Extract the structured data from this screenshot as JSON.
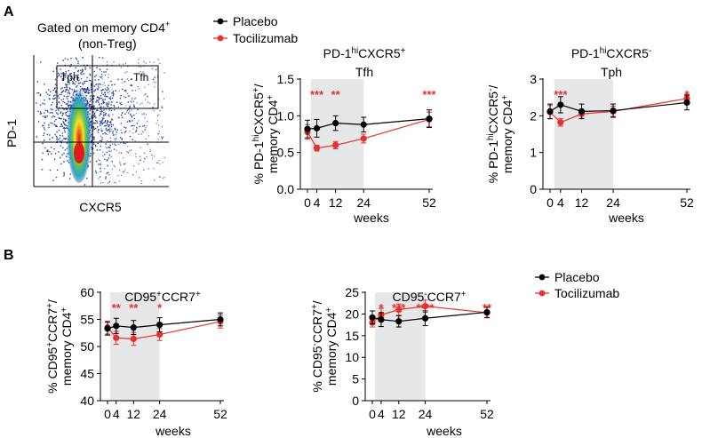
{
  "panel_a_label": "A",
  "panel_b_label": "B",
  "flow": {
    "title_line1": "Gated on memory CD4",
    "title_sup": "+",
    "title_line2": "(non-Treg)",
    "ylabel": "PD-1",
    "xlabel": "CXCR5",
    "gate_left": "Tph",
    "gate_right": "Tfh"
  },
  "legend_a": {
    "placebo": "Placebo",
    "toci": "Tocilizumab"
  },
  "legend_b": {
    "placebo": "Placebo",
    "toci": "Tocilizumab"
  },
  "colors": {
    "placebo": "#000000",
    "toci": "#e8312f",
    "shade": "#e6e7e8",
    "stars": "#e8312f"
  },
  "chart_data": [
    {
      "type": "line",
      "title_line1": "PD-1hiCXCR5+",
      "title_line2": "Tfh",
      "ylabel_line1": "% PD-1hiCXCR5+/",
      "ylabel_line2": "memory CD4+",
      "xlabel": "weeks",
      "x": [
        0,
        4,
        12,
        24,
        52
      ],
      "xticks": [
        "0",
        "4",
        "12",
        "24",
        "52"
      ],
      "yticks": [
        "0.0",
        "0.5",
        "1.0",
        "1.5"
      ],
      "ylim": [
        0,
        1.5
      ],
      "shaded_range": [
        4,
        24
      ],
      "series": [
        {
          "name": "Placebo",
          "values": [
            0.82,
            0.83,
            0.9,
            0.88,
            0.96
          ],
          "err": [
            0.12,
            0.12,
            0.1,
            0.1,
            0.12
          ]
        },
        {
          "name": "Tocilizumab",
          "values": [
            0.78,
            0.56,
            0.6,
            0.69,
            0.95
          ],
          "err": [
            0.1,
            0.04,
            0.05,
            0.06,
            0.1
          ]
        }
      ],
      "significance": [
        {
          "x": 4,
          "label": "***"
        },
        {
          "x": 12,
          "label": "**"
        },
        {
          "x": 52,
          "label": "***"
        }
      ]
    },
    {
      "type": "line",
      "title_line1": "PD-1hiCXCR5-",
      "title_line2": "Tph",
      "ylabel_line1": "% PD-1hiCXCR5-/",
      "ylabel_line2": "memory CD4+",
      "xlabel": "weeks",
      "x": [
        0,
        4,
        12,
        24,
        52
      ],
      "xticks": [
        "0",
        "4",
        "12",
        "24",
        "52"
      ],
      "yticks": [
        "0",
        "1",
        "2",
        "3"
      ],
      "ylim": [
        0,
        3
      ],
      "shaded_range": [
        4,
        24
      ],
      "series": [
        {
          "name": "Placebo",
          "values": [
            2.12,
            2.3,
            2.12,
            2.14,
            2.36
          ],
          "err": [
            0.2,
            0.22,
            0.2,
            0.18,
            0.2
          ]
        },
        {
          "name": "Tocilizumab",
          "values": [
            2.1,
            1.82,
            2.05,
            2.12,
            2.47
          ],
          "err": [
            0.18,
            0.1,
            0.12,
            0.14,
            0.12
          ]
        }
      ],
      "significance": [
        {
          "x": 4,
          "label": "***"
        },
        {
          "x": 52,
          "label": "*"
        }
      ]
    },
    {
      "type": "line",
      "title_line1": "CD95+CCR7+",
      "title_line2": "",
      "ylabel_line1": "% CD95+CCR7+/",
      "ylabel_line2": "memory CD4+",
      "xlabel": "weeks",
      "x": [
        0,
        4,
        12,
        24,
        52
      ],
      "xticks": [
        "0",
        "4",
        "12",
        "24",
        "52"
      ],
      "yticks": [
        "40",
        "45",
        "50",
        "55",
        "60"
      ],
      "ylim": [
        40,
        60
      ],
      "shaded_range": [
        4,
        24
      ],
      "series": [
        {
          "name": "Placebo",
          "values": [
            53.3,
            53.8,
            53.5,
            54.0,
            55.0
          ],
          "err": [
            1.2,
            1.4,
            1.3,
            1.3,
            1.2
          ]
        },
        {
          "name": "Tocilizumab",
          "values": [
            53.5,
            51.6,
            51.4,
            52.2,
            54.6
          ],
          "err": [
            1.2,
            1.2,
            1.2,
            1.1,
            1.2
          ]
        }
      ],
      "significance": [
        {
          "x": 4,
          "label": "**"
        },
        {
          "x": 12,
          "label": "**"
        },
        {
          "x": 24,
          "label": "*"
        }
      ]
    },
    {
      "type": "line",
      "title_line1": "CD95-CCR7+",
      "title_line2": "",
      "ylabel_line1": "% CD95-CCR7+/",
      "ylabel_line2": "memory CD4+",
      "xlabel": "weeks",
      "x": [
        0,
        4,
        12,
        24,
        52
      ],
      "xticks": [
        "0",
        "4",
        "12",
        "24",
        "52"
      ],
      "yticks": [
        "0",
        "5",
        "10",
        "15",
        "20",
        "25"
      ],
      "ylim": [
        0,
        25
      ],
      "shaded_range": [
        4,
        24
      ],
      "series": [
        {
          "name": "Placebo",
          "values": [
            19.2,
            18.7,
            18.3,
            19.0,
            20.4
          ],
          "err": [
            1.5,
            1.6,
            1.3,
            1.7,
            1.2
          ]
        },
        {
          "name": "Tocilizumab",
          "values": [
            18.0,
            19.8,
            21.0,
            21.8,
            20.3
          ],
          "err": [
            1.0,
            1.5,
            1.3,
            1.4,
            1.2
          ]
        }
      ],
      "significance": [
        {
          "x": 4,
          "label": "*"
        },
        {
          "x": 12,
          "label": "***"
        },
        {
          "x": 24,
          "label": "****"
        },
        {
          "x": 52,
          "label": "**"
        }
      ]
    }
  ]
}
